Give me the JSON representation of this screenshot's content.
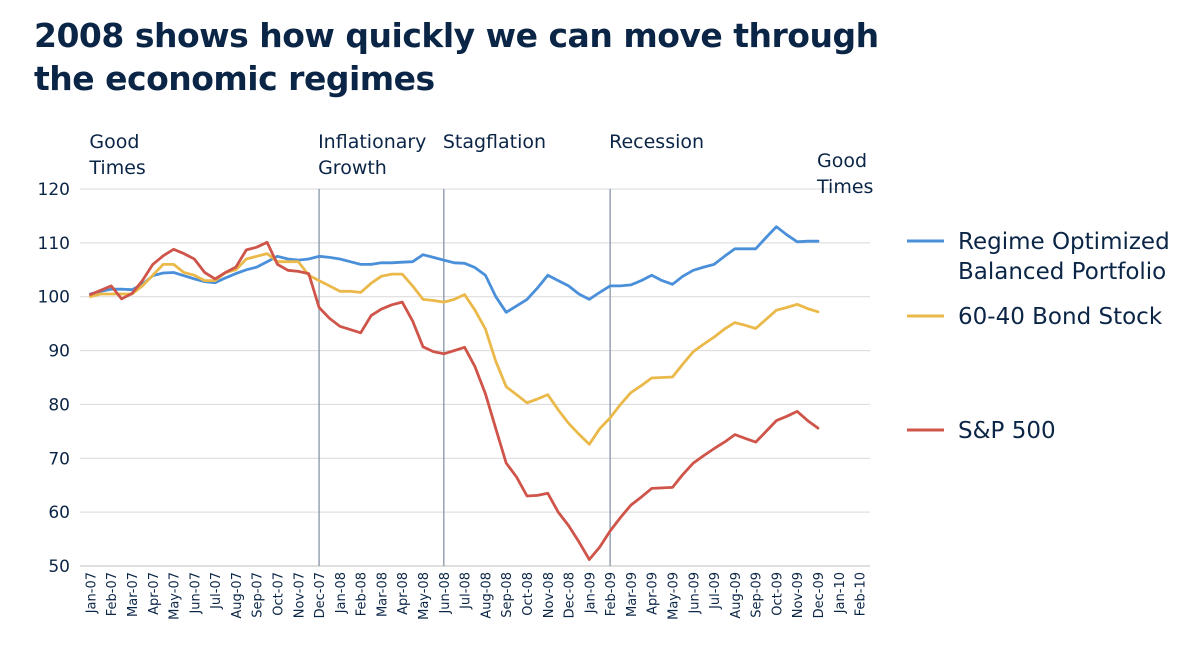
{
  "title": "2008 shows how quickly we can move through the economic regimes",
  "chart_data": {
    "type": "line",
    "title": "2008 shows how quickly we can move through the economic regimes",
    "xlabel": "",
    "ylabel": "",
    "ylim": [
      50,
      120
    ],
    "yticks": [
      50,
      60,
      70,
      80,
      90,
      100,
      110,
      120
    ],
    "grid": true,
    "categories": [
      "Jan-07",
      "Feb-07",
      "Mar-07",
      "Apr-07",
      "May-07",
      "Jun-07",
      "Jul-07",
      "Aug-07",
      "Sep-07",
      "Oct-07",
      "Nov-07",
      "Dec-07",
      "Jan-08",
      "Feb-08",
      "Mar-08",
      "Apr-08",
      "May-08",
      "Jun-08",
      "Jul-08",
      "Aug-08",
      "Sep-08",
      "Oct-08",
      "Nov-08",
      "Dec-08",
      "Jan-09",
      "Feb-09",
      "Mar-09",
      "Apr-09",
      "May-09",
      "Jun-09",
      "Jul-09",
      "Aug-09",
      "Sep-09",
      "Oct-09",
      "Nov-09",
      "Dec-09",
      "Jan-10",
      "Feb-10"
    ],
    "x": [
      0,
      0.5,
      1,
      1.5,
      2,
      2.5,
      3,
      3.5,
      4,
      4.5,
      5,
      5.5,
      6,
      6.5,
      7,
      7.5,
      8,
      8.5,
      9,
      9.5,
      10,
      10.5,
      11,
      11.5,
      12,
      12.5,
      13,
      13.5,
      14,
      14.5,
      15,
      15.5,
      16,
      16.5,
      17,
      17.5,
      18,
      18.5,
      19,
      19.5,
      20,
      20.5,
      21,
      21.5,
      22,
      22.5,
      23,
      23.5,
      24,
      24.5,
      25,
      25.5,
      26,
      26.5,
      27,
      27.5,
      28,
      28.5,
      29,
      29.5,
      30,
      30.5,
      31,
      31.5,
      32,
      32.5,
      33,
      33.5,
      34,
      34.5,
      35,
      35.5,
      36,
      36.5,
      37
    ],
    "series": [
      {
        "name": "Regime Optimized Balanced Portfolio",
        "color": "#4a8fd9",
        "values": [
          100.5,
          101.0,
          101.4,
          101.4,
          101.3,
          102.3,
          103.9,
          104.4,
          104.5,
          103.9,
          103.3,
          102.8,
          102.6,
          103.5,
          104.3,
          105.0,
          105.5,
          106.5,
          107.5,
          107.0,
          106.8,
          107.0,
          107.5,
          107.3,
          107.0,
          106.5,
          106.0,
          106.0,
          106.3,
          106.3,
          106.4,
          106.5,
          107.8,
          107.3,
          106.8,
          106.3,
          106.2,
          105.4,
          104.0,
          100.0,
          97.1,
          98.3,
          99.5,
          101.6,
          104.0,
          103.0,
          102.0,
          100.5,
          99.5,
          100.8,
          102.0,
          102.0,
          102.2,
          103.0,
          104.0,
          103.0,
          102.3,
          103.8,
          104.9,
          105.5,
          106.0,
          107.5,
          108.9,
          108.9,
          108.9,
          111.0,
          113.0,
          111.5,
          110.2,
          110.3,
          110.3,
          null,
          null,
          null,
          null
        ]
      },
      {
        "name": "60-40 Bond Stock",
        "color": "#eab94a",
        "values": [
          100.0,
          100.5,
          100.5,
          100.5,
          100.5,
          102.0,
          104.0,
          106.0,
          106.0,
          104.5,
          104.0,
          103.0,
          103.0,
          104.5,
          105.0,
          107.0,
          107.5,
          108.0,
          106.5,
          106.5,
          106.5,
          104.0,
          103.0,
          102.0,
          101.0,
          101.0,
          100.8,
          102.5,
          103.8,
          104.2,
          104.2,
          102.0,
          99.5,
          99.3,
          99.0,
          99.5,
          100.4,
          97.5,
          94.0,
          88.0,
          83.3,
          81.8,
          80.3,
          81.0,
          81.8,
          79.0,
          76.5,
          74.5,
          72.6,
          75.5,
          77.5,
          80.0,
          82.2,
          83.5,
          84.9,
          85.0,
          85.1,
          87.5,
          89.8,
          91.2,
          92.5,
          94.0,
          95.2,
          94.7,
          94.1,
          95.8,
          97.5,
          98.0,
          98.6,
          97.8,
          97.2,
          null,
          null,
          null,
          null
        ]
      },
      {
        "name": "S&P 500",
        "color": "#cf5449",
        "values": [
          100.4,
          101.2,
          102.0,
          99.6,
          100.6,
          103.0,
          106.0,
          107.6,
          108.8,
          108.0,
          107.0,
          104.5,
          103.3,
          104.5,
          105.5,
          108.7,
          109.2,
          110.1,
          106.0,
          104.9,
          104.7,
          104.3,
          98.0,
          96.0,
          94.5,
          93.9,
          93.3,
          96.5,
          97.7,
          98.5,
          99.0,
          95.5,
          90.7,
          89.8,
          89.4,
          90.0,
          90.6,
          87.0,
          82.0,
          75.5,
          69.1,
          66.5,
          63.0,
          63.1,
          63.5,
          60.0,
          57.5,
          54.5,
          51.2,
          53.5,
          56.5,
          59.0,
          61.3,
          62.8,
          64.4,
          64.5,
          64.6,
          67.0,
          69.1,
          70.5,
          71.8,
          73.0,
          74.4,
          73.7,
          73.0,
          75.0,
          77.0,
          77.8,
          78.7,
          77.0,
          75.6,
          null,
          null,
          null,
          null
        ]
      }
    ],
    "regimes": [
      {
        "label_lines": [
          "Good",
          "Times"
        ],
        "x": 0
      },
      {
        "label_lines": [
          "Inflationary",
          "Growth"
        ],
        "x": 11
      },
      {
        "label_lines": [
          "Stagflation"
        ],
        "x": 17
      },
      {
        "label_lines": [
          "Recession"
        ],
        "x": 25
      },
      {
        "label_lines": [
          "Good",
          "Times"
        ],
        "x": 35
      }
    ],
    "regime_boundaries": [
      11,
      17,
      25
    ],
    "legend": [
      {
        "lines": [
          "Regime Optimized",
          "Balanced Portfolio"
        ],
        "series": 0
      },
      {
        "lines": [
          "60-40 Bond Stock"
        ],
        "series": 1
      },
      {
        "lines": [
          "S&P 500"
        ],
        "series": 2
      }
    ],
    "legend_placement": "right"
  }
}
